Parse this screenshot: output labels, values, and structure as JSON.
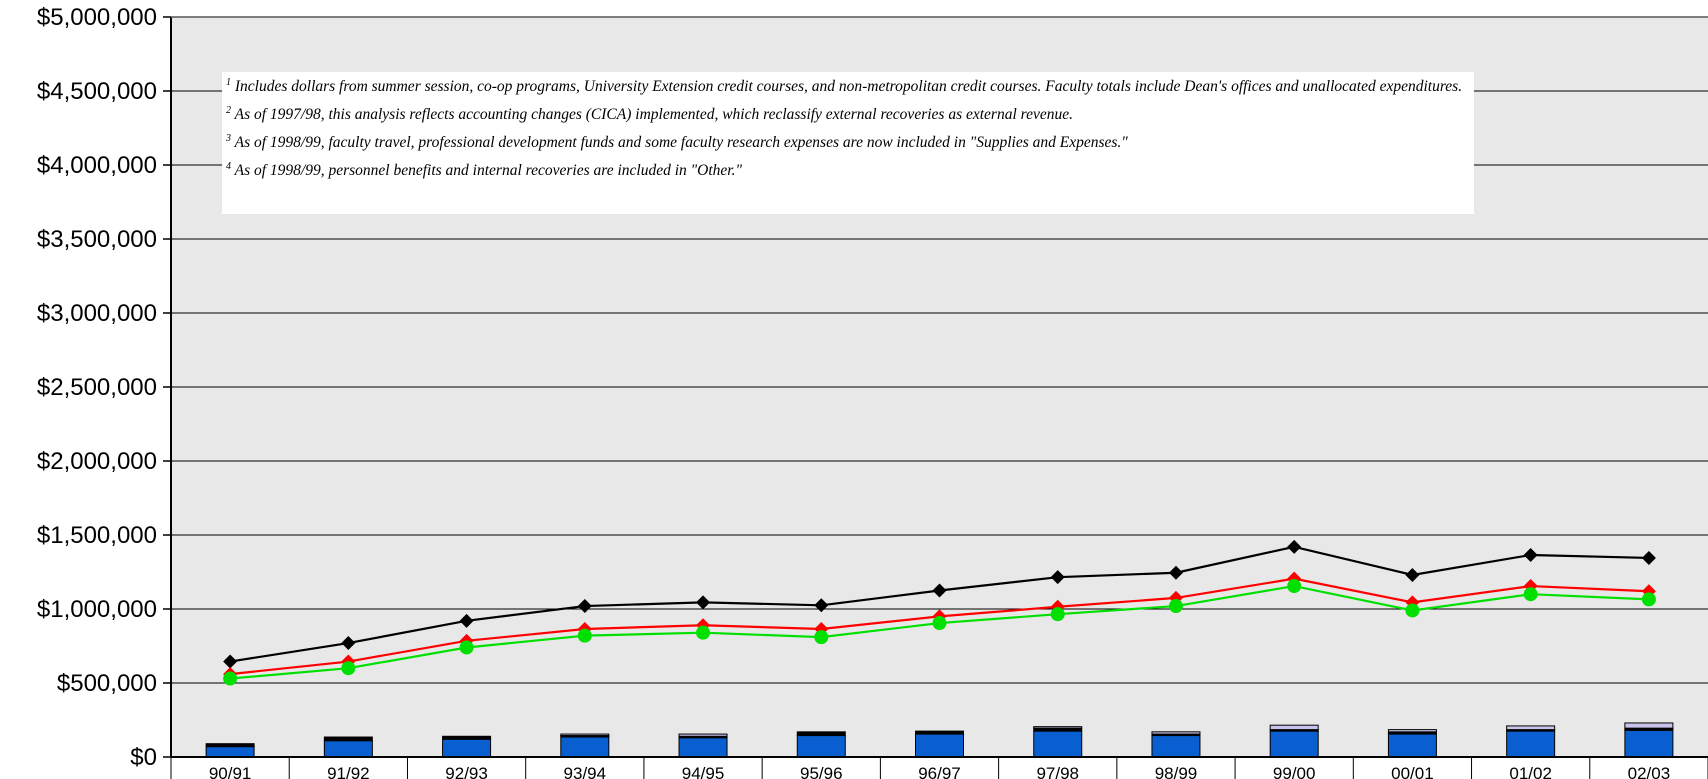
{
  "chart_data": {
    "type": "bar+line",
    "categories": [
      "90/91",
      "91/92",
      "92/93",
      "93/94",
      "94/95",
      "95/96",
      "96/97",
      "97/98",
      "98/99",
      "99/00",
      "00/01",
      "01/02",
      "02/03"
    ],
    "ylim": [
      0,
      5000000
    ],
    "yticks": [
      0,
      500000,
      1000000,
      1500000,
      2000000,
      2500000,
      3000000,
      3500000,
      4000000,
      4500000,
      5000000
    ],
    "ytick_labels": [
      "$0",
      "$500,000",
      "$1,000,000",
      "$1,500,000",
      "$2,000,000",
      "$2,500,000",
      "$3,000,000",
      "$3,500,000",
      "$4,000,000",
      "$4,500,000",
      "$5,000,000"
    ],
    "grid": true,
    "stacked_bars": [
      {
        "color": "#0a5fd0",
        "values": [
          70000,
          110000,
          120000,
          135000,
          130000,
          145000,
          155000,
          175000,
          145000,
          175000,
          155000,
          175000,
          180000
        ]
      },
      {
        "color": "#000000",
        "values": [
          20000,
          25000,
          20000,
          10000,
          10000,
          25000,
          20000,
          20000,
          10000,
          10000,
          15000,
          10000,
          15000
        ]
      },
      {
        "color": "#c8c4ec",
        "values": [
          0,
          0,
          0,
          10000,
          15000,
          0,
          0,
          10000,
          15000,
          30000,
          15000,
          25000,
          35000
        ]
      }
    ],
    "lines": [
      {
        "color": "#000000",
        "marker": "diamond",
        "values": [
          645000,
          770000,
          920000,
          1020000,
          1045000,
          1025000,
          1125000,
          1215000,
          1245000,
          1420000,
          1230000,
          1365000,
          1345000
        ]
      },
      {
        "color": "#ff0000",
        "marker": "diamond",
        "values": [
          560000,
          645000,
          785000,
          865000,
          890000,
          865000,
          950000,
          1015000,
          1075000,
          1205000,
          1045000,
          1155000,
          1120000
        ]
      },
      {
        "color": "#00e000",
        "marker": "circle",
        "values": [
          530000,
          600000,
          740000,
          820000,
          840000,
          810000,
          905000,
          965000,
          1020000,
          1155000,
          990000,
          1100000,
          1065000
        ]
      }
    ]
  },
  "notes": [
    {
      "num": "1",
      "text": "Includes dollars from summer session, co-op programs, University Extension credit courses, and non-metropolitan credit courses.  Faculty totals include Dean's offices and unallocated expenditures."
    },
    {
      "num": "2",
      "text": "As of 1997/98, this analysis reflects accounting changes (CICA) implemented, which reclassify external recoveries as external revenue."
    },
    {
      "num": "3",
      "text": "As of 1998/99, faculty travel, professional development funds and some faculty research expenses are now included in \"Supplies and Expenses.\""
    },
    {
      "num": "4",
      "text": "As of 1998/99, personnel benefits and internal recoveries are included in \"Other.\""
    }
  ]
}
